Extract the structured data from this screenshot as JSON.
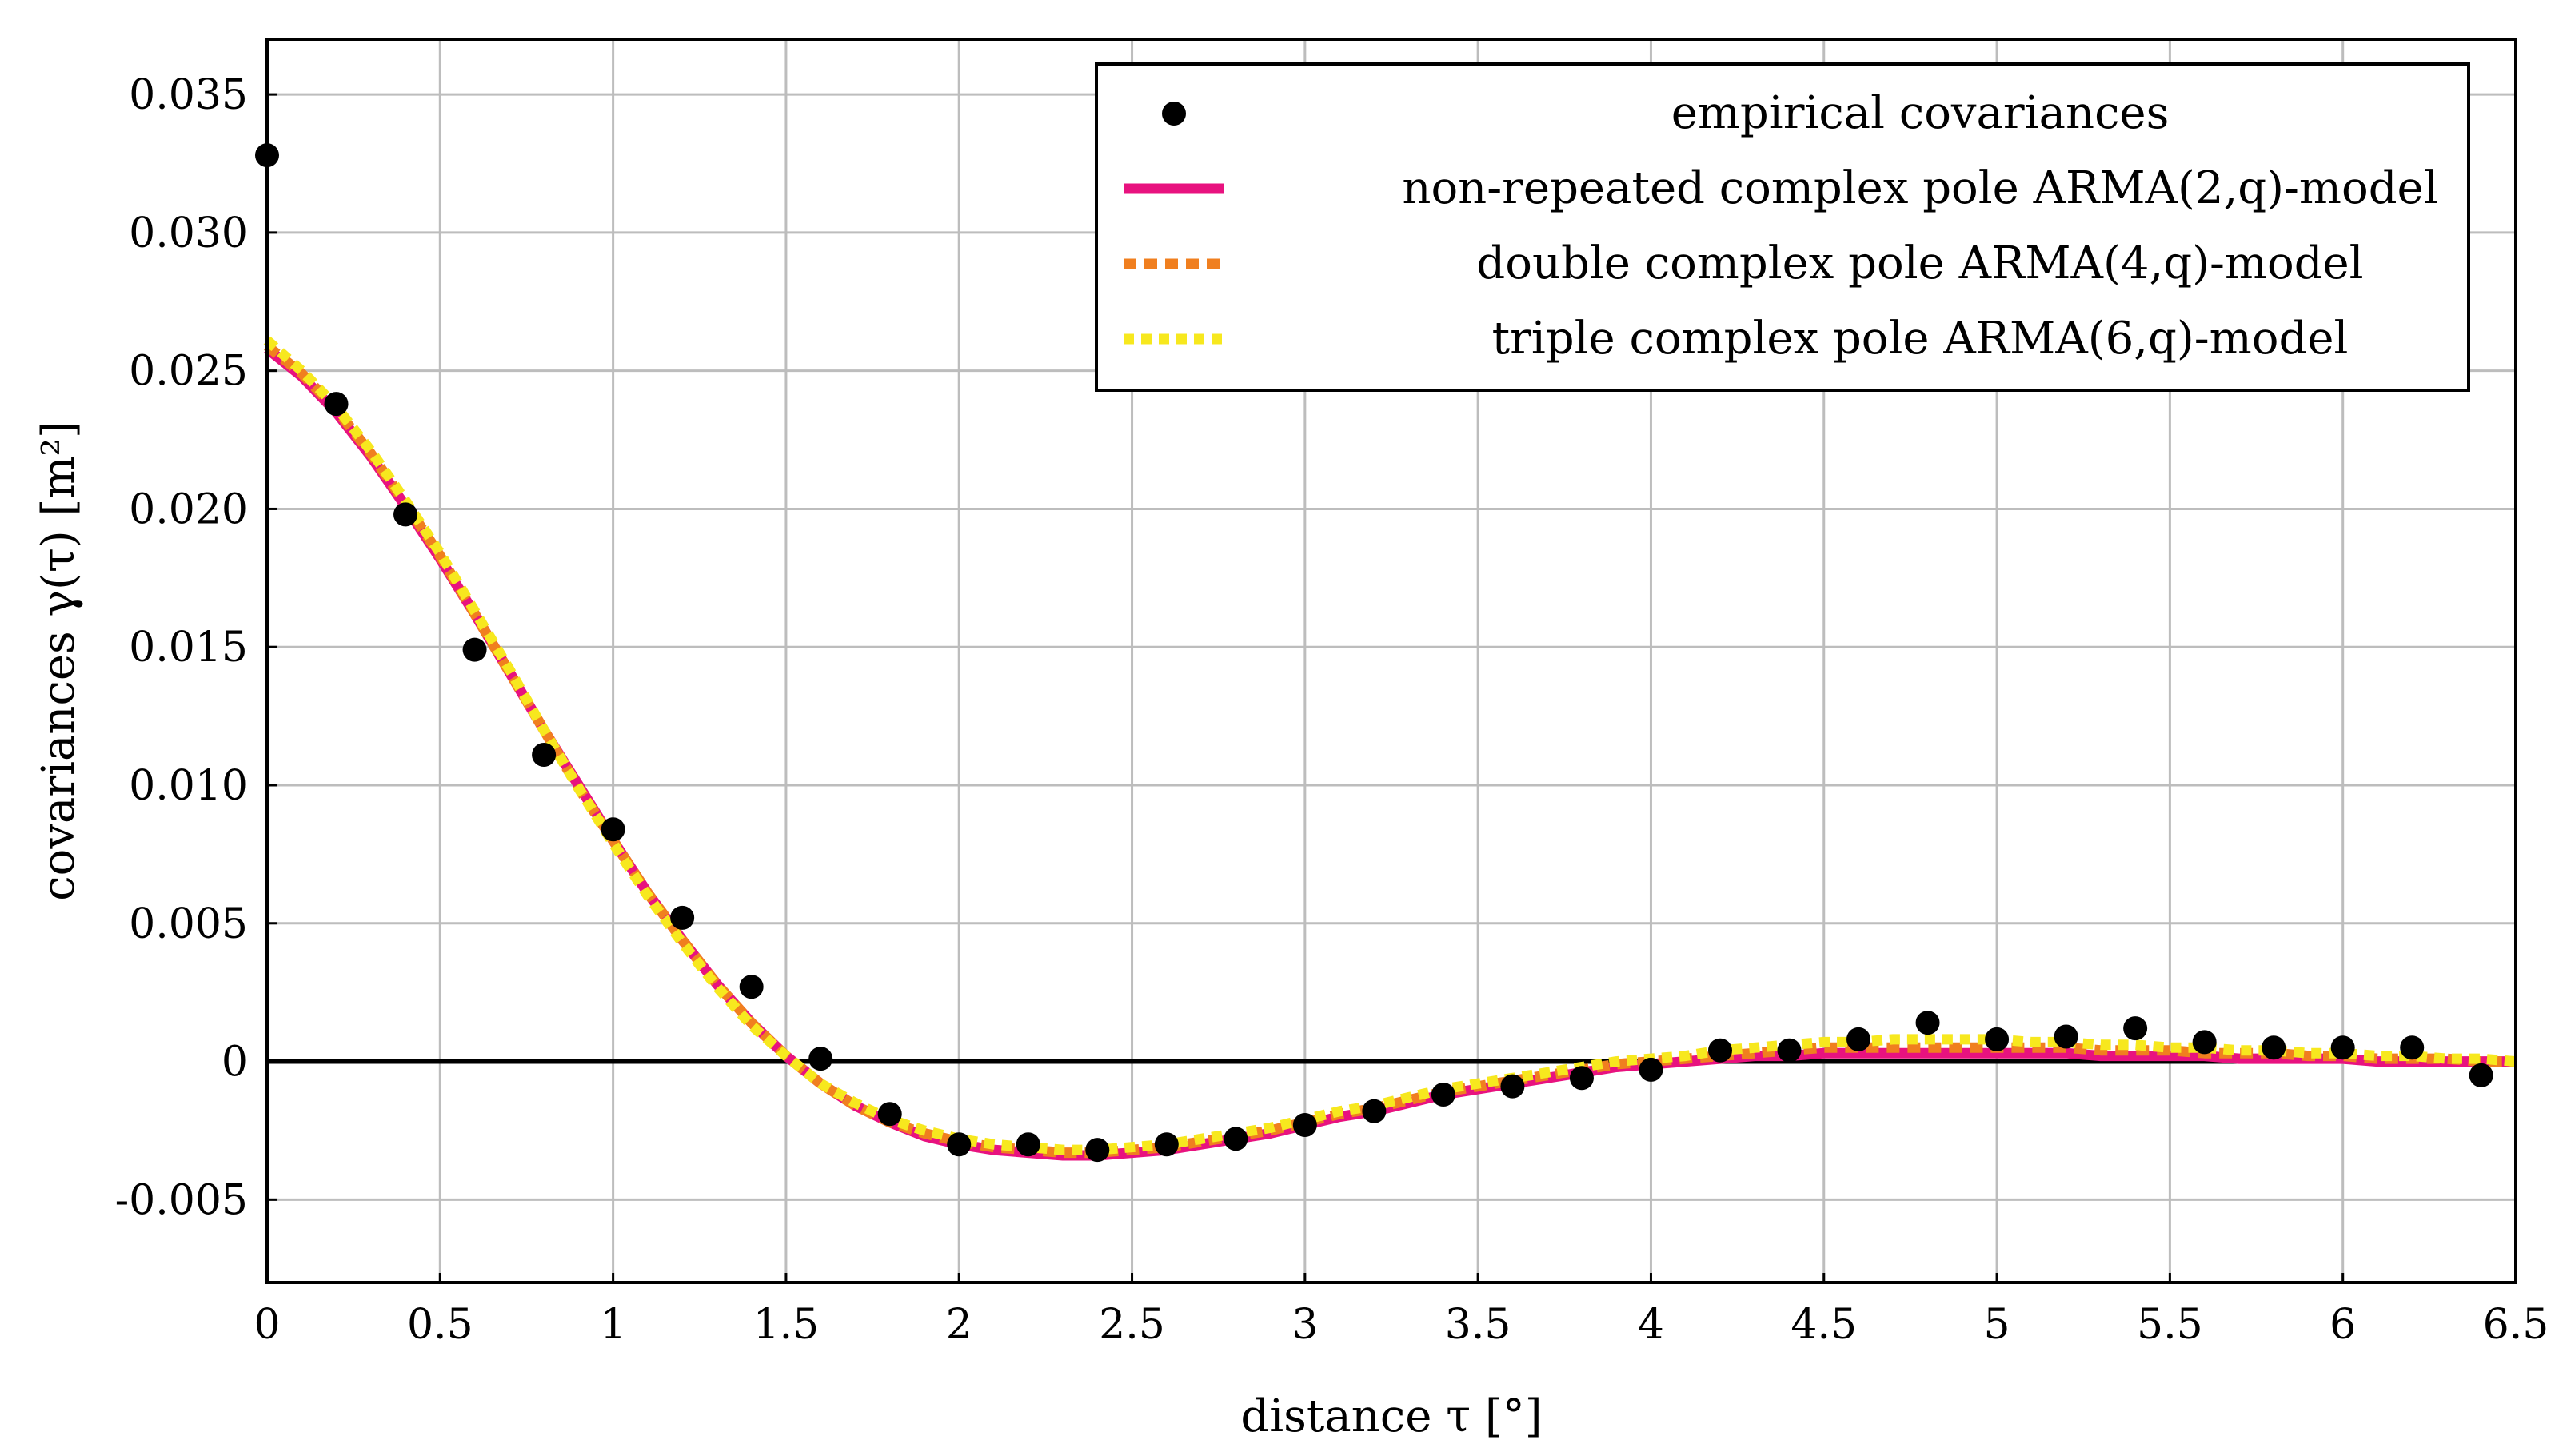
{
  "chart_data": {
    "type": "line",
    "title": "",
    "xlabel": "distance  τ  [°]",
    "ylabel": "covariances  γ(τ)  [m²]",
    "xlim": [
      0,
      6.5
    ],
    "ylim": [
      -0.008,
      0.037
    ],
    "xticks": [
      0,
      0.5,
      1,
      1.5,
      2,
      2.5,
      3,
      3.5,
      4,
      4.5,
      5,
      5.5,
      6,
      6.5
    ],
    "xtick_labels": [
      "0",
      "0.5",
      "1",
      "1.5",
      "2",
      "2.5",
      "3",
      "3.5",
      "4",
      "4.5",
      "5",
      "5.5",
      "6",
      "6.5"
    ],
    "yticks": [
      -0.005,
      0,
      0.005,
      0.01,
      0.015,
      0.02,
      0.025,
      0.03,
      0.035
    ],
    "ytick_labels": [
      "-0.005",
      "0",
      "0.005",
      "0.010",
      "0.015",
      "0.020",
      "0.025",
      "0.030",
      "0.035"
    ],
    "grid": true,
    "zero_line": true,
    "legend_position": "top-right",
    "scatter": {
      "name": "empirical covariances",
      "color": "#000000",
      "x": [
        0,
        0.2,
        0.4,
        0.6,
        0.8,
        1.0,
        1.2,
        1.4,
        1.6,
        1.8,
        2.0,
        2.2,
        2.4,
        2.6,
        2.8,
        3.0,
        3.2,
        3.4,
        3.6,
        3.8,
        4.0,
        4.2,
        4.4,
        4.6,
        4.8,
        5.0,
        5.2,
        5.4,
        5.6,
        5.8,
        6.0,
        6.2,
        6.4
      ],
      "y": [
        0.0328,
        0.0238,
        0.0198,
        0.0149,
        0.0111,
        0.0084,
        0.0052,
        0.0027,
        0.0001,
        -0.0019,
        -0.003,
        -0.003,
        -0.0032,
        -0.003,
        -0.0028,
        -0.0023,
        -0.0018,
        -0.0012,
        -0.0009,
        -0.0006,
        -0.0003,
        0.0004,
        0.0004,
        0.0008,
        0.0014,
        0.0008,
        0.0009,
        0.0012,
        0.0007,
        0.0005,
        0.0005,
        0.0005,
        -0.0005
      ]
    },
    "series": [
      {
        "name": "non-repeated complex pole ARMA(2,q)-model",
        "color": "#e8127f",
        "style": "solid",
        "x": [
          0,
          0.1,
          0.2,
          0.3,
          0.4,
          0.5,
          0.6,
          0.7,
          0.8,
          0.9,
          1.0,
          1.1,
          1.2,
          1.3,
          1.4,
          1.5,
          1.6,
          1.7,
          1.8,
          1.9,
          2.0,
          2.1,
          2.2,
          2.3,
          2.4,
          2.5,
          2.6,
          2.7,
          2.8,
          2.9,
          3.0,
          3.1,
          3.2,
          3.3,
          3.4,
          3.5,
          3.6,
          3.7,
          3.8,
          3.9,
          4.0,
          4.1,
          4.2,
          4.3,
          4.4,
          4.5,
          4.6,
          4.7,
          4.8,
          4.9,
          5.0,
          5.1,
          5.2,
          5.3,
          5.4,
          5.5,
          5.6,
          5.7,
          5.8,
          5.9,
          6.0,
          6.1,
          6.2,
          6.3,
          6.4,
          6.5
        ],
        "y": [
          0.0258,
          0.0248,
          0.0235,
          0.0219,
          0.0201,
          0.0182,
          0.0162,
          0.0141,
          0.012,
          0.01,
          0.008,
          0.0061,
          0.0044,
          0.0028,
          0.0014,
          0.0002,
          -0.0008,
          -0.0016,
          -0.0022,
          -0.0027,
          -0.003,
          -0.0032,
          -0.0033,
          -0.0034,
          -0.0034,
          -0.0033,
          -0.0032,
          -0.003,
          -0.0028,
          -0.0026,
          -0.0023,
          -0.002,
          -0.0018,
          -0.0015,
          -0.0012,
          -0.001,
          -0.0008,
          -0.0006,
          -0.0004,
          -0.0002,
          -0.0001,
          0.0,
          0.0001,
          0.0002,
          0.0002,
          0.0003,
          0.0003,
          0.0003,
          0.0003,
          0.0003,
          0.0003,
          0.0003,
          0.0003,
          0.0002,
          0.0002,
          0.0002,
          0.0002,
          0.0001,
          0.0001,
          0.0001,
          0.0001,
          0.0,
          0.0,
          0.0,
          0.0,
          0.0
        ]
      },
      {
        "name": "double complex pole ARMA(4,q)-model",
        "color": "#f07f1f",
        "style": "dashed",
        "x": [
          0,
          0.1,
          0.2,
          0.3,
          0.4,
          0.5,
          0.6,
          0.7,
          0.8,
          0.9,
          1.0,
          1.1,
          1.2,
          1.3,
          1.4,
          1.5,
          1.6,
          1.7,
          1.8,
          1.9,
          2.0,
          2.1,
          2.2,
          2.3,
          2.4,
          2.5,
          2.6,
          2.7,
          2.8,
          2.9,
          3.0,
          3.1,
          3.2,
          3.3,
          3.4,
          3.5,
          3.6,
          3.7,
          3.8,
          3.9,
          4.0,
          4.1,
          4.2,
          4.3,
          4.4,
          4.5,
          4.6,
          4.7,
          4.8,
          4.9,
          5.0,
          5.1,
          5.2,
          5.3,
          5.4,
          5.5,
          5.6,
          5.7,
          5.8,
          5.9,
          6.0,
          6.1,
          6.2,
          6.3,
          6.4,
          6.5
        ],
        "y": [
          0.0259,
          0.0249,
          0.0236,
          0.022,
          0.0202,
          0.0183,
          0.0162,
          0.0141,
          0.012,
          0.0099,
          0.008,
          0.0061,
          0.0044,
          0.0028,
          0.0014,
          0.0002,
          -0.0008,
          -0.0016,
          -0.0022,
          -0.0026,
          -0.0029,
          -0.0031,
          -0.0032,
          -0.0033,
          -0.0033,
          -0.0032,
          -0.0031,
          -0.0029,
          -0.0027,
          -0.0025,
          -0.0022,
          -0.0019,
          -0.0017,
          -0.0014,
          -0.0011,
          -0.0009,
          -0.0007,
          -0.0005,
          -0.0003,
          -0.0001,
          0.0,
          0.0001,
          0.0002,
          0.0003,
          0.0004,
          0.0005,
          0.0005,
          0.0005,
          0.0005,
          0.0005,
          0.0005,
          0.0005,
          0.0005,
          0.0004,
          0.0004,
          0.0004,
          0.0003,
          0.0003,
          0.0003,
          0.0002,
          0.0002,
          0.0001,
          0.0001,
          0.0001,
          0.0,
          0.0
        ]
      },
      {
        "name": "triple complex pole ARMA(6,q)-model",
        "color": "#f7e81e",
        "style": "dotted",
        "x": [
          0,
          0.1,
          0.2,
          0.3,
          0.4,
          0.5,
          0.6,
          0.7,
          0.8,
          0.9,
          1.0,
          1.1,
          1.2,
          1.3,
          1.4,
          1.5,
          1.6,
          1.7,
          1.8,
          1.9,
          2.0,
          2.1,
          2.2,
          2.3,
          2.4,
          2.5,
          2.6,
          2.7,
          2.8,
          2.9,
          3.0,
          3.1,
          3.2,
          3.3,
          3.4,
          3.5,
          3.6,
          3.7,
          3.8,
          3.9,
          4.0,
          4.1,
          4.2,
          4.3,
          4.4,
          4.5,
          4.6,
          4.7,
          4.8,
          4.9,
          5.0,
          5.1,
          5.2,
          5.3,
          5.4,
          5.5,
          5.6,
          5.7,
          5.8,
          5.9,
          6.0,
          6.1,
          6.2,
          6.3,
          6.4,
          6.5
        ],
        "y": [
          0.0261,
          0.025,
          0.0237,
          0.0221,
          0.0203,
          0.0184,
          0.0163,
          0.0142,
          0.012,
          0.0099,
          0.0079,
          0.006,
          0.0043,
          0.0027,
          0.0013,
          0.0002,
          -0.0008,
          -0.0015,
          -0.0021,
          -0.0025,
          -0.0028,
          -0.003,
          -0.0031,
          -0.0032,
          -0.0032,
          -0.0031,
          -0.003,
          -0.0028,
          -0.0026,
          -0.0024,
          -0.0021,
          -0.0018,
          -0.0016,
          -0.0013,
          -0.001,
          -0.0008,
          -0.0006,
          -0.0004,
          -0.0002,
          0.0,
          0.0001,
          0.0002,
          0.0004,
          0.0005,
          0.0006,
          0.0007,
          0.0007,
          0.0008,
          0.0008,
          0.0008,
          0.0008,
          0.0007,
          0.0007,
          0.0006,
          0.0006,
          0.0005,
          0.0005,
          0.0004,
          0.0004,
          0.0003,
          0.0003,
          0.0002,
          0.0002,
          0.0001,
          0.0001,
          0.0
        ]
      }
    ]
  }
}
